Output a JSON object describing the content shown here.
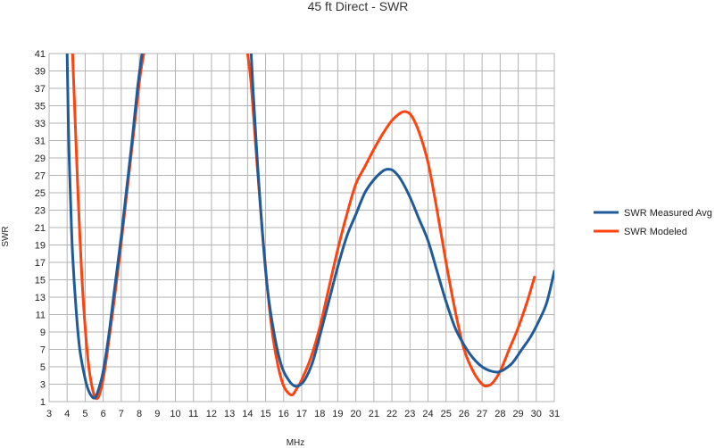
{
  "chart_data": {
    "type": "line",
    "title": "45 ft Direct - SWR",
    "xlabel": "MHz",
    "ylabel": "SWR",
    "xlim": [
      3,
      31
    ],
    "ylim": [
      1,
      41
    ],
    "x_ticks": [
      3,
      4,
      5,
      6,
      7,
      8,
      9,
      10,
      11,
      12,
      13,
      14,
      15,
      16,
      17,
      18,
      19,
      20,
      21,
      22,
      23,
      24,
      25,
      26,
      27,
      28,
      29,
      30,
      31
    ],
    "y_ticks": [
      1,
      3,
      5,
      7,
      9,
      11,
      13,
      15,
      17,
      19,
      21,
      23,
      25,
      27,
      29,
      31,
      33,
      35,
      37,
      39,
      41
    ],
    "grid": true,
    "legend_position": "right",
    "series": [
      {
        "name": "SWR Measured Avg",
        "color": "#1f5b99",
        "segments": [
          [
            [
              4.0,
              41
            ],
            [
              4.05,
              35
            ],
            [
              4.1,
              30
            ],
            [
              4.2,
              23.5
            ],
            [
              4.3,
              18
            ],
            [
              4.5,
              11.5
            ],
            [
              4.7,
              7
            ],
            [
              5.0,
              3.6
            ],
            [
              5.2,
              2.2
            ],
            [
              5.4,
              1.5
            ],
            [
              5.5,
              1.4
            ],
            [
              5.6,
              1.6
            ],
            [
              5.8,
              2.8
            ],
            [
              6.0,
              4.5
            ],
            [
              6.3,
              8.5
            ],
            [
              6.6,
              13.5
            ],
            [
              7.0,
              20
            ],
            [
              7.3,
              25.5
            ],
            [
              7.6,
              31
            ],
            [
              7.9,
              37
            ],
            [
              8.15,
              41
            ]
          ],
          [
            [
              14.2,
              41
            ],
            [
              14.3,
              37
            ],
            [
              14.5,
              30
            ],
            [
              14.8,
              21
            ],
            [
              15.1,
              14
            ],
            [
              15.5,
              8.5
            ],
            [
              15.9,
              5
            ],
            [
              16.3,
              3.4
            ],
            [
              16.6,
              2.8
            ],
            [
              16.9,
              2.9
            ],
            [
              17.2,
              3.6
            ],
            [
              17.6,
              5.5
            ],
            [
              18.0,
              8.5
            ],
            [
              18.5,
              12.5
            ],
            [
              19.0,
              16.5
            ],
            [
              19.5,
              20
            ],
            [
              20.0,
              22.5
            ],
            [
              20.5,
              25
            ],
            [
              21.0,
              26.5
            ],
            [
              21.5,
              27.5
            ],
            [
              21.8,
              27.7
            ],
            [
              22.1,
              27.5
            ],
            [
              22.5,
              26.5
            ],
            [
              23.0,
              24.5
            ],
            [
              23.5,
              22
            ],
            [
              24.0,
              19.5
            ],
            [
              24.5,
              16
            ],
            [
              25.0,
              12.5
            ],
            [
              25.5,
              9.5
            ],
            [
              26.0,
              7.5
            ],
            [
              26.5,
              6
            ],
            [
              27.0,
              5
            ],
            [
              27.5,
              4.5
            ],
            [
              27.9,
              4.4
            ],
            [
              28.3,
              4.8
            ],
            [
              28.7,
              5.5
            ],
            [
              29.2,
              7
            ],
            [
              29.7,
              8.5
            ],
            [
              30.2,
              10.5
            ],
            [
              30.6,
              12.5
            ],
            [
              31.0,
              16
            ]
          ]
        ]
      },
      {
        "name": "SWR Modeled",
        "color": "#ff420e",
        "segments": [
          [
            [
              4.3,
              41
            ],
            [
              4.45,
              33
            ],
            [
              4.6,
              25
            ],
            [
              4.8,
              16
            ],
            [
              5.0,
              9.5
            ],
            [
              5.2,
              5
            ],
            [
              5.4,
              2.5
            ],
            [
              5.55,
              1.5
            ],
            [
              5.7,
              1.4
            ],
            [
              5.85,
              2.2
            ],
            [
              6.05,
              4.2
            ],
            [
              6.3,
              7.8
            ],
            [
              6.6,
              12.5
            ],
            [
              6.9,
              17.5
            ],
            [
              7.2,
              23
            ],
            [
              7.5,
              28.5
            ],
            [
              7.8,
              34
            ],
            [
              8.05,
              38.5
            ],
            [
              8.25,
              41
            ]
          ],
          [
            [
              14.0,
              41
            ],
            [
              14.2,
              37.5
            ],
            [
              14.5,
              29
            ],
            [
              14.8,
              21
            ],
            [
              15.1,
              14
            ],
            [
              15.4,
              8.5
            ],
            [
              15.7,
              5
            ],
            [
              16.0,
              2.8
            ],
            [
              16.3,
              1.9
            ],
            [
              16.5,
              1.8
            ],
            [
              16.7,
              2.4
            ],
            [
              17.0,
              3.5
            ],
            [
              17.5,
              6
            ],
            [
              18.0,
              9.5
            ],
            [
              18.5,
              14
            ],
            [
              19.0,
              18.5
            ],
            [
              19.5,
              22.5
            ],
            [
              20.0,
              26
            ],
            [
              20.5,
              28
            ],
            [
              21.0,
              30
            ],
            [
              21.5,
              31.8
            ],
            [
              22.0,
              33.3
            ],
            [
              22.5,
              34.2
            ],
            [
              22.8,
              34.3
            ],
            [
              23.1,
              33.8
            ],
            [
              23.5,
              32
            ],
            [
              24.0,
              28.5
            ],
            [
              24.5,
              23
            ],
            [
              25.0,
              17
            ],
            [
              25.5,
              11.5
            ],
            [
              26.0,
              7
            ],
            [
              26.5,
              4.5
            ],
            [
              27.0,
              3
            ],
            [
              27.3,
              2.8
            ],
            [
              27.6,
              3.2
            ],
            [
              28.0,
              4.5
            ],
            [
              28.5,
              7
            ],
            [
              29.0,
              9.5
            ],
            [
              29.5,
              12.5
            ],
            [
              29.9,
              15.3
            ]
          ]
        ]
      }
    ]
  }
}
